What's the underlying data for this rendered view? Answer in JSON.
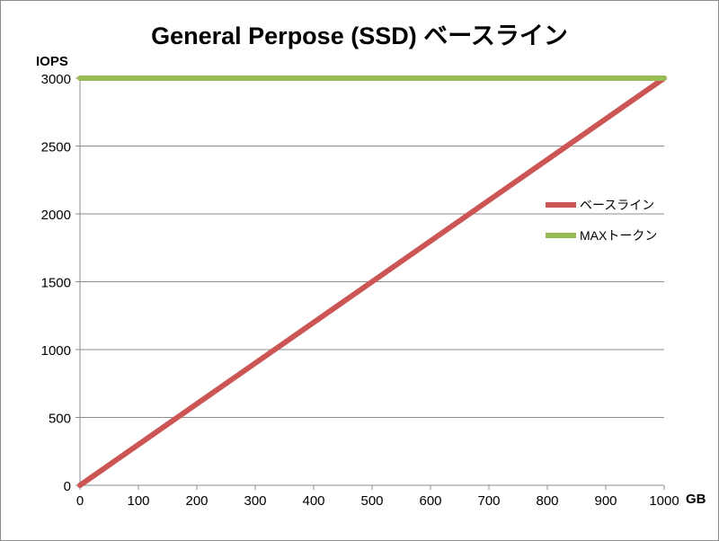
{
  "chart_data": {
    "type": "line",
    "title": "General Perpose (SSD) ベースライン",
    "xlabel": "GB",
    "ylabel": "IOPS",
    "xlim": [
      0,
      1000
    ],
    "ylim": [
      0,
      3000
    ],
    "x_ticks": [
      "0",
      "100",
      "200",
      "300",
      "400",
      "500",
      "600",
      "700",
      "800",
      "900",
      "1000"
    ],
    "y_ticks": [
      "0",
      "500",
      "1000",
      "1500",
      "2000",
      "2500",
      "3000"
    ],
    "grid": "horizontal",
    "legend_position": "right",
    "series": [
      {
        "name": "ベースライン",
        "color": "#cc5555",
        "x": [
          0,
          1000
        ],
        "y": [
          0,
          3000
        ]
      },
      {
        "name": "MAXトークン",
        "color": "#99bb55",
        "x": [
          0,
          1000
        ],
        "y": [
          3000,
          3000
        ]
      }
    ]
  }
}
